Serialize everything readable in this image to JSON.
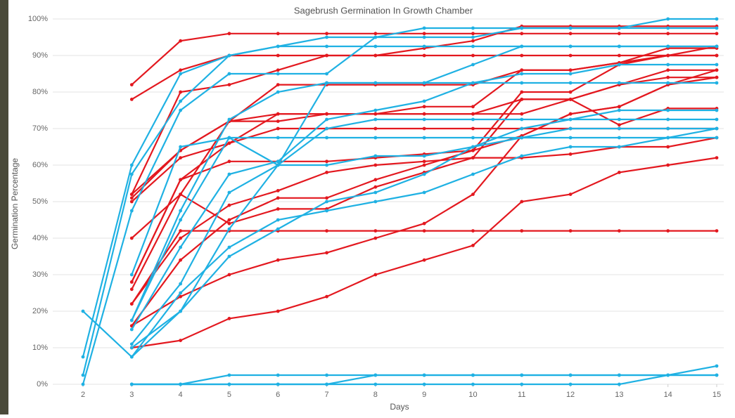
{
  "chart_data": {
    "type": "line",
    "title": "Sagebrush Germination In Growth Chamber",
    "xlabel": "Days",
    "ylabel": "Germination Percentage",
    "x": [
      2,
      3,
      4,
      5,
      6,
      7,
      8,
      9,
      10,
      11,
      12,
      13,
      14,
      15
    ],
    "xlim": [
      2,
      15
    ],
    "xticks": [
      2,
      3,
      4,
      5,
      6,
      7,
      8,
      9,
      10,
      11,
      12,
      13,
      14,
      15
    ],
    "ylim": [
      0,
      100
    ],
    "yticks": [
      {
        "value": 0,
        "label": "0%"
      },
      {
        "value": 10,
        "label": "10%"
      },
      {
        "value": 20,
        "label": "20%"
      },
      {
        "value": 30,
        "label": "30%"
      },
      {
        "value": 40,
        "label": "40%"
      },
      {
        "value": 50,
        "label": "50%"
      },
      {
        "value": 60,
        "label": "60%"
      },
      {
        "value": 70,
        "label": "70%"
      },
      {
        "value": 80,
        "label": "80%"
      },
      {
        "value": 90,
        "label": "90%"
      },
      {
        "value": 100,
        "label": "100%"
      }
    ],
    "grid": true,
    "series": [
      {
        "color": "#e3181f",
        "values": [
          null,
          82,
          94,
          96,
          96,
          96,
          96,
          96,
          96,
          96,
          96,
          96,
          96,
          96
        ]
      },
      {
        "color": "#e3181f",
        "values": [
          null,
          78,
          86,
          90,
          90,
          90,
          90,
          90,
          90,
          90,
          90,
          90,
          90,
          90
        ]
      },
      {
        "color": "#e3181f",
        "values": [
          null,
          52,
          80,
          82,
          86,
          90,
          90,
          92,
          94,
          98,
          98,
          98,
          98,
          98
        ]
      },
      {
        "color": "#e3181f",
        "values": [
          null,
          51,
          64,
          72,
          82,
          82,
          82,
          82,
          82,
          86,
          86,
          88,
          92,
          92
        ]
      },
      {
        "color": "#e3181f",
        "values": [
          null,
          50,
          62,
          66,
          74,
          74,
          74,
          74,
          74,
          74,
          78,
          82,
          86,
          86
        ]
      },
      {
        "color": "#e3181f",
        "values": [
          null,
          52,
          64,
          72,
          74,
          74,
          74,
          76,
          76,
          86,
          86,
          88,
          90,
          92.5
        ]
      },
      {
        "color": "#e3181f",
        "values": [
          null,
          40,
          52,
          72,
          72,
          74,
          74,
          74,
          74,
          78,
          78,
          82,
          84,
          84
        ]
      },
      {
        "color": "#e3181f",
        "values": [
          null,
          28,
          56,
          61,
          61,
          61,
          62,
          63,
          64,
          80,
          80,
          87.5,
          90,
          90
        ]
      },
      {
        "color": "#e3181f",
        "values": [
          null,
          28,
          56,
          66,
          70,
          70,
          70,
          70,
          70,
          70,
          70,
          70,
          70,
          70
        ]
      },
      {
        "color": "#e3181f",
        "values": [
          null,
          22,
          40,
          49,
          53,
          58,
          60,
          61,
          62,
          62,
          63,
          65,
          65,
          67.5
        ]
      },
      {
        "color": "#e3181f",
        "values": [
          null,
          16,
          34,
          45,
          51,
          51,
          56,
          60,
          64,
          68,
          74,
          76,
          82,
          86
        ]
      },
      {
        "color": "#e3181f",
        "values": [
          null,
          26,
          52,
          44,
          48,
          48,
          54,
          58,
          62,
          78,
          78,
          71,
          75.5,
          75.5
        ]
      },
      {
        "color": "#e3181f",
        "values": [
          null,
          16,
          24,
          30,
          34,
          36,
          40,
          44,
          52,
          68,
          74,
          76,
          82,
          84
        ]
      },
      {
        "color": "#e3181f",
        "values": [
          null,
          10,
          12,
          18,
          20,
          24,
          30,
          34,
          38,
          50,
          52,
          58,
          60,
          62
        ]
      },
      {
        "color": "#e3181f",
        "values": [
          null,
          22,
          42,
          42,
          42,
          42,
          42,
          42,
          42,
          42,
          42,
          42,
          42,
          42
        ]
      },
      {
        "color": "#1fb1e3",
        "values": [
          7.5,
          60,
          85,
          90,
          92.5,
          92.5,
          92.5,
          92.5,
          92.5,
          92.5,
          92.5,
          92.5,
          92.5,
          92.5
        ]
      },
      {
        "color": "#1fb1e3",
        "values": [
          2.5,
          57.5,
          77.5,
          90,
          92.5,
          95,
          95,
          95,
          95,
          97.5,
          97.5,
          97.5,
          97.5,
          97.5
        ]
      },
      {
        "color": "#1fb1e3",
        "values": [
          0,
          47.5,
          75,
          85,
          85,
          85,
          95,
          97.5,
          97.5,
          97.5,
          97.5,
          97.5,
          100,
          100
        ]
      },
      {
        "color": "#1fb1e3",
        "values": [
          20,
          7.5,
          20,
          42.5,
          60,
          82.5,
          82.5,
          82.5,
          82.5,
          82.5,
          82.5,
          82.5,
          82.5,
          82.5
        ]
      },
      {
        "color": "#1fb1e3",
        "values": [
          null,
          30,
          65,
          67.5,
          67.5,
          67.5,
          67.5,
          67.5,
          67.5,
          67.5,
          67.5,
          67.5,
          67.5,
          67.5
        ]
      },
      {
        "color": "#1fb1e3",
        "values": [
          null,
          17.5,
          47.5,
          72.5,
          80,
          82.5,
          82.5,
          82.5,
          87.5,
          92.5,
          92.5,
          92.5,
          92.5,
          92.5
        ]
      },
      {
        "color": "#1fb1e3",
        "values": [
          null,
          15,
          37.5,
          57.5,
          61,
          72.5,
          75,
          77.5,
          82.5,
          85,
          85,
          87.5,
          87.5,
          87.5
        ]
      },
      {
        "color": "#1fb1e3",
        "values": [
          null,
          11,
          27.5,
          52.5,
          60,
          70,
          72.5,
          72.5,
          72.5,
          72.5,
          72.5,
          72.5,
          72.5,
          72.5
        ]
      },
      {
        "color": "#1fb1e3",
        "values": [
          null,
          7.5,
          25,
          37.5,
          45,
          47.5,
          50,
          52.5,
          57.5,
          62.5,
          65,
          65,
          67.5,
          70
        ]
      },
      {
        "color": "#1fb1e3",
        "values": [
          null,
          10,
          20,
          35,
          42.5,
          50,
          52.5,
          57.5,
          65,
          70,
          72.5,
          75,
          75,
          75
        ]
      },
      {
        "color": "#1fb1e3",
        "values": [
          null,
          17.5,
          45,
          67.5,
          60,
          60,
          62.5,
          62.5,
          65,
          67.5,
          70,
          70,
          70,
          70
        ]
      },
      {
        "color": "#1fb1e3",
        "values": [
          null,
          0,
          0,
          2.5,
          2.5,
          2.5,
          2.5,
          2.5,
          2.5,
          2.5,
          2.5,
          2.5,
          2.5,
          2.5
        ]
      },
      {
        "color": "#1fb1e3",
        "values": [
          null,
          0,
          0,
          0,
          0,
          0,
          2.5,
          2.5,
          2.5,
          2.5,
          2.5,
          2.5,
          2.5,
          2.5
        ]
      },
      {
        "color": "#1fb1e3",
        "values": [
          null,
          0,
          0,
          0,
          0,
          0,
          0,
          0,
          0,
          0,
          0,
          0,
          2.5,
          5
        ]
      }
    ]
  }
}
